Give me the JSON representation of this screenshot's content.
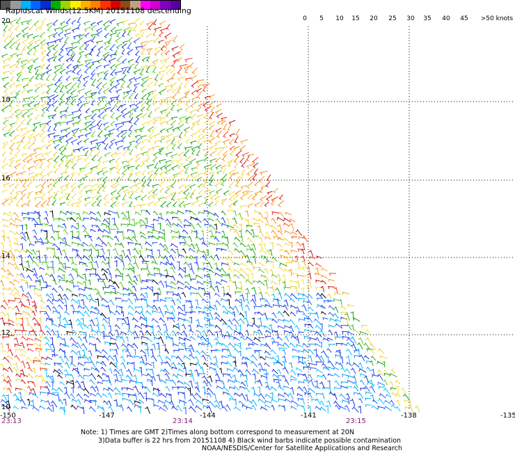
{
  "title": "Rapidscat Winds(12.5KM) 20151108 descending",
  "legend": {
    "labels": [
      "0",
      "5",
      "10",
      "15",
      "20",
      "25",
      "30",
      "35",
      "40",
      "45",
      ">50 knots"
    ],
    "colors": [
      "#555555",
      "#9a9a9a",
      "#00b4ff",
      "#0066ff",
      "#0a2ad0",
      "#00b000",
      "#9bd400",
      "#fff000",
      "#ffb000",
      "#ff8000",
      "#ff3000",
      "#dd0000",
      "#8a4a1f",
      "#c0a080",
      "#ff00ff",
      "#d000d0",
      "#8000c0",
      "#5a00a0"
    ]
  },
  "map": {
    "lat_labels": [
      "20",
      "18",
      "16",
      "14",
      "12",
      "10"
    ],
    "lon_labels": [
      "-150",
      "-147",
      "-144",
      "-141",
      "-138",
      "-135"
    ],
    "time_labels": [
      "23:13",
      "23:14",
      "23:15"
    ],
    "contamination_color": "#000000"
  },
  "notes": [
    "Note: 1) Times are GMT 2)Times along bottom correspond to measurement at 20N",
    "3)Data buffer is 22 hrs from 20151108 4) Black wind barbs indicate possible contamination",
    "NOAA/NESDIS/Center for Satellite Applications and Research"
  ]
}
